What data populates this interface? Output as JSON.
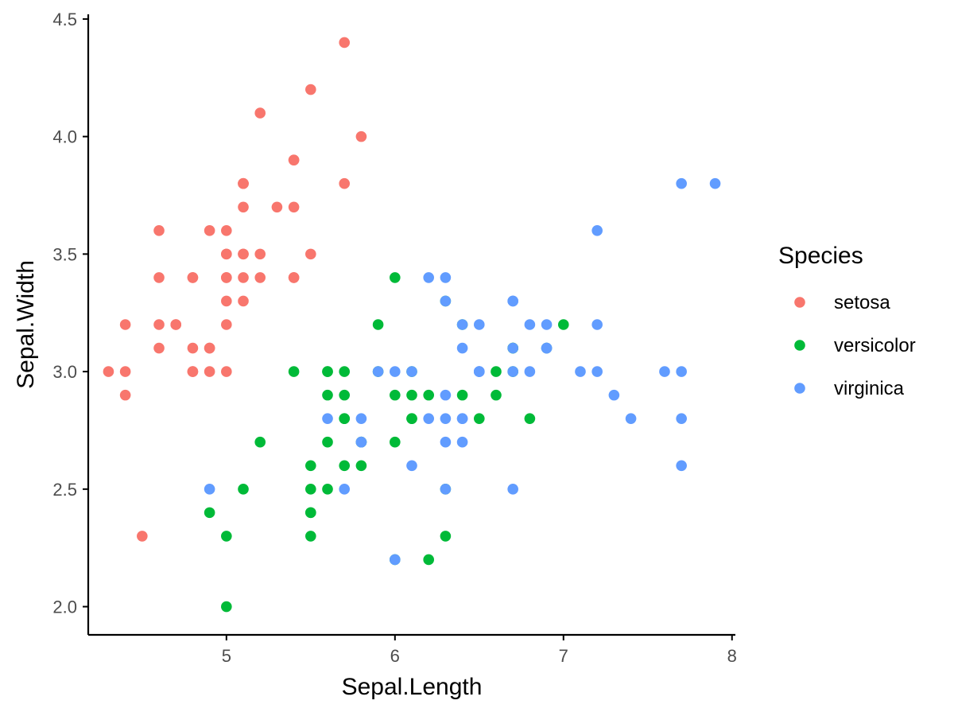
{
  "chart_data": {
    "type": "scatter",
    "title": "",
    "xlabel": "Sepal.Length",
    "ylabel": "Sepal.Width",
    "xlim": [
      4.18,
      8.02
    ],
    "ylim": [
      1.88,
      4.52
    ],
    "x_ticks": [
      5,
      6,
      7,
      8
    ],
    "x_tick_labels": [
      "5",
      "6",
      "7",
      "8"
    ],
    "y_ticks": [
      2.0,
      2.5,
      3.0,
      3.5,
      4.0,
      4.5
    ],
    "y_tick_labels": [
      "2.0",
      "2.5",
      "3.0",
      "3.5",
      "4.0",
      "4.5"
    ],
    "grid": false,
    "legend": {
      "title": "Species",
      "placement": "right"
    },
    "series": [
      {
        "name": "setosa",
        "color": "#F8766D",
        "points": [
          [
            5.1,
            3.5
          ],
          [
            4.9,
            3.0
          ],
          [
            4.7,
            3.2
          ],
          [
            4.6,
            3.1
          ],
          [
            5.0,
            3.6
          ],
          [
            5.4,
            3.9
          ],
          [
            4.6,
            3.4
          ],
          [
            5.0,
            3.4
          ],
          [
            4.4,
            2.9
          ],
          [
            4.9,
            3.1
          ],
          [
            5.4,
            3.7
          ],
          [
            4.8,
            3.4
          ],
          [
            4.8,
            3.0
          ],
          [
            4.3,
            3.0
          ],
          [
            5.8,
            4.0
          ],
          [
            5.7,
            4.4
          ],
          [
            5.4,
            3.9
          ],
          [
            5.1,
            3.5
          ],
          [
            5.7,
            3.8
          ],
          [
            5.1,
            3.8
          ],
          [
            5.4,
            3.4
          ],
          [
            5.1,
            3.7
          ],
          [
            4.6,
            3.6
          ],
          [
            5.1,
            3.3
          ],
          [
            4.8,
            3.4
          ],
          [
            5.0,
            3.0
          ],
          [
            5.0,
            3.4
          ],
          [
            5.2,
            3.5
          ],
          [
            5.2,
            3.4
          ],
          [
            4.7,
            3.2
          ],
          [
            4.8,
            3.1
          ],
          [
            5.4,
            3.4
          ],
          [
            5.2,
            4.1
          ],
          [
            5.5,
            4.2
          ],
          [
            4.9,
            3.1
          ],
          [
            5.0,
            3.2
          ],
          [
            5.5,
            3.5
          ],
          [
            4.9,
            3.6
          ],
          [
            4.4,
            3.0
          ],
          [
            5.1,
            3.4
          ],
          [
            5.0,
            3.5
          ],
          [
            4.5,
            2.3
          ],
          [
            4.4,
            3.2
          ],
          [
            5.0,
            3.5
          ],
          [
            5.1,
            3.8
          ],
          [
            4.8,
            3.0
          ],
          [
            5.1,
            3.8
          ],
          [
            4.6,
            3.2
          ],
          [
            5.3,
            3.7
          ],
          [
            5.0,
            3.3
          ]
        ]
      },
      {
        "name": "versicolor",
        "color": "#00BA38",
        "points": [
          [
            7.0,
            3.2
          ],
          [
            6.4,
            3.2
          ],
          [
            6.9,
            3.1
          ],
          [
            5.5,
            2.3
          ],
          [
            6.5,
            2.8
          ],
          [
            5.7,
            2.8
          ],
          [
            6.3,
            3.3
          ],
          [
            4.9,
            2.4
          ],
          [
            6.6,
            2.9
          ],
          [
            5.2,
            2.7
          ],
          [
            5.0,
            2.0
          ],
          [
            5.9,
            3.0
          ],
          [
            6.0,
            2.2
          ],
          [
            6.1,
            2.9
          ],
          [
            5.6,
            2.9
          ],
          [
            6.7,
            3.1
          ],
          [
            5.6,
            3.0
          ],
          [
            5.8,
            2.7
          ],
          [
            6.2,
            2.2
          ],
          [
            5.6,
            2.5
          ],
          [
            5.9,
            3.2
          ],
          [
            6.1,
            2.8
          ],
          [
            6.3,
            2.5
          ],
          [
            6.1,
            2.8
          ],
          [
            6.4,
            2.9
          ],
          [
            6.6,
            3.0
          ],
          [
            6.8,
            2.8
          ],
          [
            6.7,
            3.0
          ],
          [
            6.0,
            2.9
          ],
          [
            5.7,
            2.6
          ],
          [
            5.5,
            2.4
          ],
          [
            5.5,
            2.4
          ],
          [
            5.8,
            2.7
          ],
          [
            6.0,
            2.7
          ],
          [
            5.4,
            3.0
          ],
          [
            6.0,
            3.4
          ],
          [
            6.7,
            3.1
          ],
          [
            6.3,
            2.3
          ],
          [
            5.6,
            3.0
          ],
          [
            5.5,
            2.5
          ],
          [
            5.5,
            2.6
          ],
          [
            6.1,
            3.0
          ],
          [
            5.8,
            2.6
          ],
          [
            5.0,
            2.3
          ],
          [
            5.6,
            2.7
          ],
          [
            5.7,
            3.0
          ],
          [
            5.7,
            2.9
          ],
          [
            6.2,
            2.9
          ],
          [
            5.1,
            2.5
          ],
          [
            5.7,
            2.8
          ]
        ]
      },
      {
        "name": "virginica",
        "color": "#619CFF",
        "points": [
          [
            6.3,
            3.3
          ],
          [
            5.8,
            2.7
          ],
          [
            7.1,
            3.0
          ],
          [
            6.3,
            2.9
          ],
          [
            6.5,
            3.0
          ],
          [
            7.6,
            3.0
          ],
          [
            4.9,
            2.5
          ],
          [
            7.3,
            2.9
          ],
          [
            6.7,
            2.5
          ],
          [
            7.2,
            3.6
          ],
          [
            6.5,
            3.2
          ],
          [
            6.4,
            2.7
          ],
          [
            6.8,
            3.0
          ],
          [
            5.7,
            2.5
          ],
          [
            5.8,
            2.8
          ],
          [
            6.4,
            3.2
          ],
          [
            6.5,
            3.0
          ],
          [
            7.7,
            3.8
          ],
          [
            7.7,
            2.6
          ],
          [
            6.0,
            2.2
          ],
          [
            6.9,
            3.2
          ],
          [
            5.6,
            2.8
          ],
          [
            7.7,
            2.8
          ],
          [
            6.3,
            2.7
          ],
          [
            6.7,
            3.3
          ],
          [
            7.2,
            3.2
          ],
          [
            6.2,
            2.8
          ],
          [
            6.1,
            3.0
          ],
          [
            6.4,
            2.8
          ],
          [
            7.2,
            3.0
          ],
          [
            7.4,
            2.8
          ],
          [
            7.9,
            3.8
          ],
          [
            6.4,
            2.8
          ],
          [
            6.3,
            2.8
          ],
          [
            6.1,
            2.6
          ],
          [
            7.7,
            3.0
          ],
          [
            6.3,
            3.4
          ],
          [
            6.4,
            3.1
          ],
          [
            6.0,
            3.0
          ],
          [
            6.9,
            3.1
          ],
          [
            6.7,
            3.1
          ],
          [
            6.9,
            3.1
          ],
          [
            5.8,
            2.7
          ],
          [
            6.8,
            3.2
          ],
          [
            6.7,
            3.3
          ],
          [
            6.7,
            3.0
          ],
          [
            6.3,
            2.5
          ],
          [
            6.5,
            3.0
          ],
          [
            6.2,
            3.4
          ],
          [
            5.9,
            3.0
          ]
        ]
      }
    ]
  }
}
